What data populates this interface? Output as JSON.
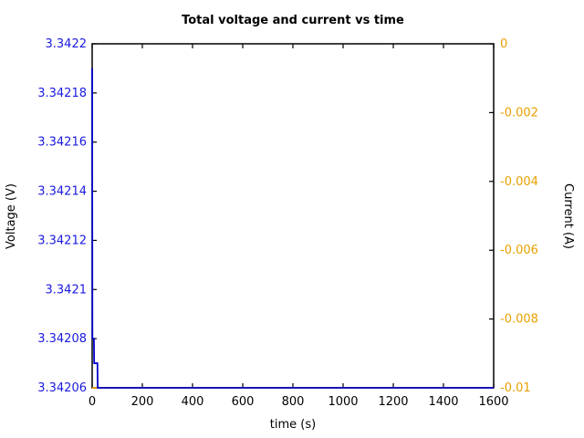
{
  "chart_data": {
    "type": "line",
    "title": "Total voltage and current vs time",
    "xlabel": "time (s)",
    "grid": false,
    "legend": "none",
    "x_axis": {
      "range": [
        0,
        1600
      ],
      "tick_values": [
        0,
        200,
        400,
        600,
        800,
        1000,
        1200,
        1400,
        1600
      ],
      "tick_labels": [
        "0",
        "200",
        "400",
        "600",
        "800",
        "1000",
        "1200",
        "1400",
        "1600"
      ],
      "color": "#000000"
    },
    "left_axis": {
      "label": "Voltage (V)",
      "range": [
        3.34206,
        3.3422
      ],
      "tick_values": [
        3.34206,
        3.34208,
        3.3421,
        3.34212,
        3.34214,
        3.34216,
        3.34218,
        3.3422
      ],
      "tick_labels": [
        "3.34206",
        "3.34208",
        "3.3421",
        "3.34212",
        "3.34214",
        "3.34216",
        "3.34218",
        "3.3422"
      ],
      "color": "#1a1ae0"
    },
    "right_axis": {
      "label": "Current (A)",
      "range": [
        -0.01,
        0
      ],
      "tick_values": [
        -0.01,
        -0.008,
        -0.006,
        -0.004,
        -0.002,
        0
      ],
      "tick_labels": [
        "-0.01",
        "-0.008",
        "-0.006",
        "-0.004",
        "-0.002",
        "0"
      ],
      "color": "#e8a000"
    },
    "series": [
      {
        "name": "current",
        "axis": "right",
        "color": "#e8a000",
        "points": [
          [
            0,
            -0.01
          ],
          [
            1600,
            -0.01
          ]
        ]
      },
      {
        "name": "voltage",
        "axis": "left",
        "color": "#0000cc",
        "points": [
          [
            0,
            3.34219
          ],
          [
            1,
            3.34208
          ],
          [
            7,
            3.34208
          ],
          [
            8,
            3.34207
          ],
          [
            21,
            3.34207
          ],
          [
            22,
            3.34206
          ],
          [
            1600,
            3.34206
          ]
        ]
      }
    ]
  }
}
